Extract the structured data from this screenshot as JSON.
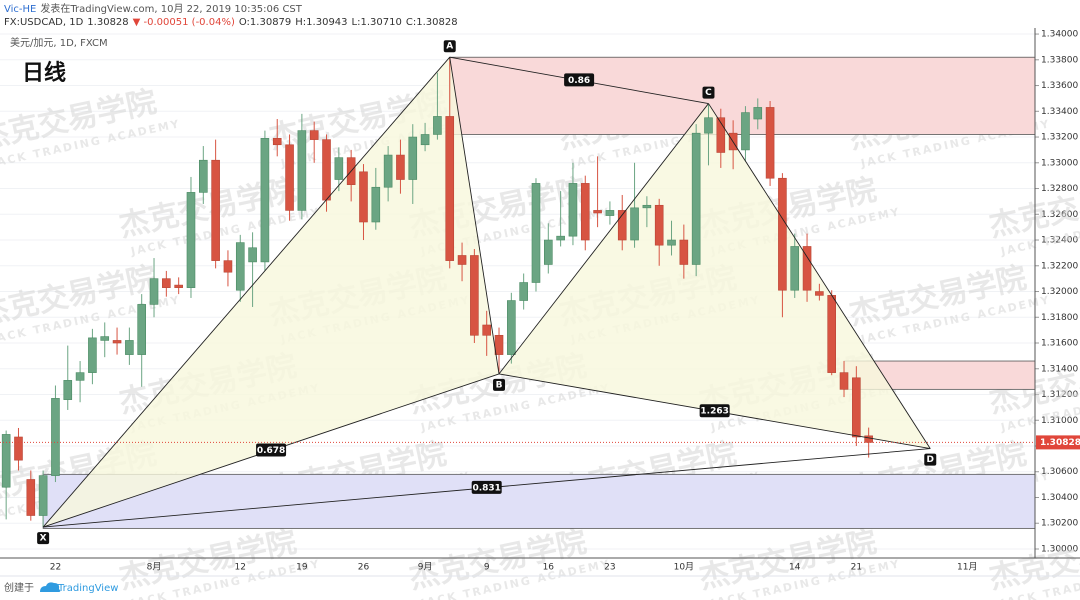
{
  "header": {
    "author": "Vic-HE",
    "published": "发表在TradingView.com, 10月 22, 2019 10:35:06 CST",
    "symbol": "FX:USDCAD, 1D",
    "price": "1.30828",
    "change": "▼ -0.00051 (-0.04%)",
    "ohlc": [
      {
        "key": "O:",
        "value": "1.30879"
      },
      {
        "key": "H:",
        "value": "1.30943"
      },
      {
        "key": "L:",
        "value": "1.30710"
      },
      {
        "key": "C:",
        "value": "1.30828"
      }
    ],
    "instrument": "美元/加元, 1D, FXCM",
    "timeframe": "日线"
  },
  "watermark": {
    "title": "杰克交易学院",
    "subtitle": "JACK TRADING ACADEMY"
  },
  "footer": {
    "created": "创建于",
    "brand": "TradingView"
  },
  "chart_data": {
    "type": "candlestick",
    "categories": [
      null,
      null,
      null,
      null,
      "22",
      null,
      null,
      null,
      null,
      null,
      null,
      null,
      "8月",
      null,
      null,
      null,
      null,
      null,
      null,
      "12",
      null,
      null,
      null,
      null,
      "19",
      null,
      null,
      null,
      null,
      "26",
      null,
      null,
      null,
      null,
      "9月",
      null,
      null,
      null,
      null,
      "9",
      null,
      null,
      null,
      null,
      "16",
      null,
      null,
      null,
      null,
      "23",
      null,
      null,
      null,
      null,
      null,
      "10月",
      null,
      null,
      null,
      null,
      null,
      null,
      null,
      null,
      "14",
      null,
      null,
      null,
      null,
      "21",
      null,
      null,
      null,
      null,
      null,
      null,
      null,
      null,
      "11月",
      null,
      null,
      null,
      null,
      null
    ],
    "open": [
      1.3048,
      1.3087,
      1.3054,
      1.3026,
      1.3057,
      1.3116,
      1.3131,
      1.3137,
      1.3162,
      1.3162,
      1.3151,
      1.3151,
      1.319,
      1.321,
      1.3205,
      1.3203,
      1.3277,
      1.3302,
      1.3224,
      1.3201,
      1.3223,
      1.3223,
      1.3319,
      1.3314,
      1.3263,
      1.3325,
      1.3318,
      1.3287,
      1.3304,
      1.3293,
      1.3254,
      1.3281,
      1.3306,
      1.3287,
      1.3314,
      1.3322,
      1.3336,
      1.3228,
      1.3228,
      1.3174,
      1.3166,
      1.3151,
      1.3193,
      1.3207,
      1.3221,
      1.324,
      1.3243,
      1.3284,
      1.3263,
      1.3259,
      1.3263,
      1.324,
      1.3265,
      1.3267,
      1.3236,
      1.324,
      1.3221,
      1.3323,
      1.3335,
      1.3323,
      1.331,
      1.3334,
      1.3343,
      1.3288,
      1.3201,
      1.3235,
      1.32,
      1.3197,
      1.3137,
      1.3133,
      1.30879,
      null,
      null,
      null,
      null,
      null,
      null,
      null,
      null,
      null,
      null,
      null,
      null,
      null
    ],
    "high": [
      1.3092,
      1.3094,
      1.3061,
      1.3061,
      1.3127,
      1.3158,
      1.3146,
      1.3171,
      1.3176,
      1.3172,
      1.3172,
      1.3198,
      1.3226,
      1.3216,
      1.3211,
      1.3289,
      1.3313,
      1.3318,
      1.3232,
      1.3244,
      1.3246,
      1.3325,
      1.3334,
      1.3322,
      1.3338,
      1.3332,
      1.3322,
      1.3312,
      1.331,
      1.3299,
      1.3296,
      1.3313,
      1.3318,
      1.333,
      1.3331,
      1.337,
      1.3382,
      1.3238,
      1.3233,
      1.3185,
      1.3172,
      1.3199,
      1.3214,
      1.3288,
      1.3253,
      1.3278,
      1.33,
      1.329,
      1.3305,
      1.327,
      1.3275,
      1.33,
      1.3274,
      1.3272,
      1.3255,
      1.3252,
      1.333,
      1.3346,
      1.3342,
      1.3333,
      1.3344,
      1.335,
      1.3348,
      1.3292,
      1.3245,
      1.3245,
      1.3206,
      1.3201,
      1.3146,
      1.3142,
      1.30943,
      null,
      null,
      null,
      null,
      null,
      null,
      null,
      null,
      null,
      null,
      null,
      null,
      null
    ],
    "low": [
      1.3023,
      1.3061,
      1.3022,
      1.3017,
      1.3052,
      1.3108,
      1.3114,
      1.3128,
      1.3149,
      1.3151,
      1.3143,
      1.3126,
      1.318,
      1.3196,
      1.3198,
      1.3195,
      1.3268,
      1.3218,
      1.3204,
      1.3192,
      1.3188,
      1.3216,
      1.3305,
      1.3255,
      1.3256,
      1.33,
      1.3262,
      1.3278,
      1.327,
      1.324,
      1.3248,
      1.327,
      1.3276,
      1.3268,
      1.3309,
      1.3318,
      1.3218,
      1.3208,
      1.316,
      1.315,
      1.3136,
      1.3144,
      1.3186,
      1.32,
      1.3214,
      1.3235,
      1.3236,
      1.3232,
      1.325,
      1.3252,
      1.3232,
      1.3234,
      1.325,
      1.322,
      1.3228,
      1.321,
      1.3212,
      1.3298,
      1.3296,
      1.3295,
      1.3301,
      1.3326,
      1.3282,
      1.318,
      1.3195,
      1.3192,
      1.3193,
      1.3135,
      1.3118,
      1.308,
      1.3071,
      null,
      null,
      null,
      null,
      null,
      null,
      null,
      null,
      null,
      null,
      null,
      null,
      null
    ],
    "close": [
      1.3089,
      1.3069,
      1.3026,
      1.3057,
      1.3117,
      1.3131,
      1.3137,
      1.3164,
      1.3165,
      1.316,
      1.3162,
      1.319,
      1.321,
      1.3203,
      1.3203,
      1.3277,
      1.3302,
      1.3224,
      1.3215,
      1.3238,
      1.3234,
      1.3319,
      1.3314,
      1.3263,
      1.3325,
      1.3318,
      1.3271,
      1.3304,
      1.3283,
      1.3254,
      1.3281,
      1.3306,
      1.3287,
      1.332,
      1.3322,
      1.3336,
      1.3224,
      1.3221,
      1.3166,
      1.3166,
      1.3151,
      1.3193,
      1.3207,
      1.3284,
      1.324,
      1.3243,
      1.3284,
      1.324,
      1.3261,
      1.3263,
      1.324,
      1.3265,
      1.3267,
      1.3236,
      1.324,
      1.3221,
      1.3323,
      1.3335,
      1.3308,
      1.331,
      1.3339,
      1.3343,
      1.3288,
      1.3201,
      1.3235,
      1.3201,
      1.3197,
      1.3137,
      1.3124,
      1.3087,
      1.30828,
      null,
      null,
      null,
      null,
      null,
      null,
      null,
      null,
      null,
      null,
      null,
      null,
      null
    ],
    "up_color": "#6ba583",
    "down_color": "#d75442",
    "ylim": [
      1.2993,
      1.34047
    ],
    "yticks": [
      {
        "value": 1.3,
        "label": "1.30000"
      },
      {
        "value": 1.302,
        "label": "1.30200"
      },
      {
        "value": 1.304,
        "label": "1.30400"
      },
      {
        "value": 1.306,
        "label": "1.30600"
      },
      {
        "value": 1.308,
        "label": "1.30800"
      },
      {
        "value": 1.31,
        "label": "1.31000"
      },
      {
        "value": 1.312,
        "label": "1.31200"
      },
      {
        "value": 1.314,
        "label": "1.31400"
      },
      {
        "value": 1.316,
        "label": "1.31600"
      },
      {
        "value": 1.318,
        "label": "1.31800"
      },
      {
        "value": 1.32,
        "label": "1.32000"
      },
      {
        "value": 1.322,
        "label": "1.32200"
      },
      {
        "value": 1.324,
        "label": "1.32400"
      },
      {
        "value": 1.326,
        "label": "1.32600"
      },
      {
        "value": 1.328,
        "label": "1.32800"
      },
      {
        "value": 1.33,
        "label": "1.33000"
      },
      {
        "value": 1.332,
        "label": "1.33200"
      },
      {
        "value": 1.334,
        "label": "1.33400"
      },
      {
        "value": 1.336,
        "label": "1.33600"
      },
      {
        "value": 1.338,
        "label": "1.33800"
      },
      {
        "value": 1.34,
        "label": "1.34000"
      }
    ],
    "grid": true,
    "last_price": {
      "value": 1.30828,
      "label": "1.30828",
      "color": "#e0463a"
    },
    "zones": [
      {
        "high": 1.3382,
        "low": 1.3322,
        "color": "#f9d9d9"
      },
      {
        "high": 1.3146,
        "low": 1.3124,
        "color": "#f9d9d9"
      },
      {
        "high": 1.3058,
        "low": 1.3016,
        "color": "#e0e0f7"
      }
    ],
    "pattern": {
      "points": [
        {
          "label": "X",
          "x": 3,
          "y": 1.3017
        },
        {
          "label": "A",
          "x": 36,
          "y": 1.3382
        },
        {
          "label": "B",
          "x": 40,
          "y": 1.3136
        },
        {
          "label": "C",
          "x": 57,
          "y": 1.3346
        },
        {
          "label": "D",
          "x": 75,
          "y": 1.3078
        }
      ],
      "ratios": [
        0.86,
        0.678,
        1.263,
        0.831
      ],
      "fill": "#f7f7dc"
    }
  }
}
